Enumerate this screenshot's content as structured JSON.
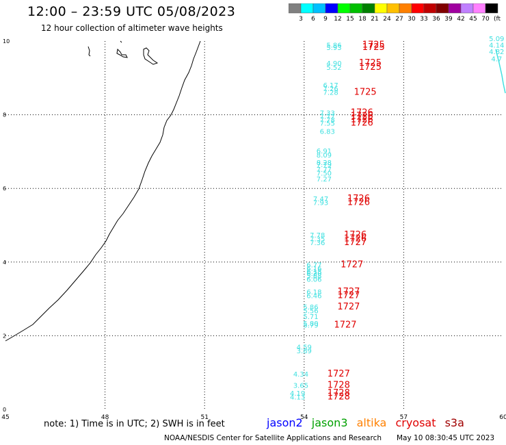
{
  "title": "12:00 – 23:59 UTC 05/08/2023",
  "subtitle": "12 hour collection of altimeter wave heights",
  "colorbar": {
    "colors": [
      "#808080",
      "#00ffff",
      "#00c0ff",
      "#0000ff",
      "#00ff00",
      "#00c000",
      "#008000",
      "#ffff00",
      "#ffc000",
      "#ff8000",
      "#ff0000",
      "#c00000",
      "#800000",
      "#a000a0",
      "#c080ff",
      "#ff80ff",
      "#000000"
    ],
    "labels": [
      "3",
      "6",
      "9",
      "12",
      "15",
      "18",
      "21",
      "24",
      "27",
      "30",
      "33",
      "36",
      "39",
      "42",
      "45",
      "70"
    ],
    "unit": "(ft)"
  },
  "chart_data": {
    "type": "scatter",
    "title": "12:00 – 23:59 UTC 05/08/2023",
    "subtitle": "12 hour collection of altimeter wave heights",
    "xlim": [
      45,
      60
    ],
    "ylim": [
      0,
      10
    ],
    "x_ticks": [
      "45",
      "48",
      "51",
      "54",
      "57",
      "60"
    ],
    "y_ticks": [
      "0",
      "2",
      "4",
      "6",
      "8",
      "10"
    ],
    "grid": true,
    "wave_points": [
      {
        "x": 54.9,
        "y": 9.82,
        "label": "5.86",
        "color": "#40e0e0"
      },
      {
        "x": 54.9,
        "y": 9.76,
        "label": "5.93",
        "color": "#40e0e0"
      },
      {
        "x": 54.9,
        "y": 9.33,
        "label": "4.90",
        "color": "#40e0e0"
      },
      {
        "x": 54.9,
        "y": 9.22,
        "label": "5.52",
        "color": "#40e0e0"
      },
      {
        "x": 54.8,
        "y": 8.74,
        "label": "6.17",
        "color": "#40e0e0"
      },
      {
        "x": 54.8,
        "y": 8.64,
        "label": "7.26",
        "color": "#40e0e0"
      },
      {
        "x": 54.8,
        "y": 8.54,
        "label": "7.28",
        "color": "#40e0e0"
      },
      {
        "x": 54.7,
        "y": 7.98,
        "label": "7.33",
        "color": "#40e0e0"
      },
      {
        "x": 54.7,
        "y": 7.89,
        "label": "7.77",
        "color": "#40e0e0"
      },
      {
        "x": 54.7,
        "y": 7.8,
        "label": "7.78",
        "color": "#40e0e0"
      },
      {
        "x": 54.7,
        "y": 7.7,
        "label": "7.55",
        "color": "#40e0e0"
      },
      {
        "x": 54.7,
        "y": 7.48,
        "label": "6.83",
        "color": "#40e0e0"
      },
      {
        "x": 54.6,
        "y": 6.95,
        "label": "6.91",
        "color": "#40e0e0"
      },
      {
        "x": 54.6,
        "y": 6.84,
        "label": "8.09",
        "color": "#40e0e0"
      },
      {
        "x": 54.6,
        "y": 6.64,
        "label": "8.28",
        "color": "#40e0e0"
      },
      {
        "x": 54.6,
        "y": 6.58,
        "label": "7.79",
        "color": "#40e0e0"
      },
      {
        "x": 54.6,
        "y": 6.45,
        "label": "7.77",
        "color": "#40e0e0"
      },
      {
        "x": 54.6,
        "y": 6.35,
        "label": "7.50",
        "color": "#40e0e0"
      },
      {
        "x": 54.6,
        "y": 6.19,
        "label": "7.27",
        "color": "#40e0e0"
      },
      {
        "x": 54.5,
        "y": 5.65,
        "label": "7.47",
        "color": "#40e0e0"
      },
      {
        "x": 54.5,
        "y": 5.55,
        "label": "7.93",
        "color": "#40e0e0"
      },
      {
        "x": 54.4,
        "y": 4.67,
        "label": "7.78",
        "color": "#40e0e0"
      },
      {
        "x": 54.4,
        "y": 4.56,
        "label": "7.35",
        "color": "#40e0e0"
      },
      {
        "x": 54.4,
        "y": 4.46,
        "label": "7.36",
        "color": "#40e0e0"
      },
      {
        "x": 54.3,
        "y": 3.86,
        "label": "6.77",
        "color": "#40e0e0"
      },
      {
        "x": 54.3,
        "y": 3.76,
        "label": "6.16",
        "color": "#40e0e0"
      },
      {
        "x": 54.3,
        "y": 3.68,
        "label": "6.18",
        "color": "#40e0e0"
      },
      {
        "x": 54.3,
        "y": 3.62,
        "label": "6.20",
        "color": "#40e0e0"
      },
      {
        "x": 54.3,
        "y": 3.56,
        "label": "5.88",
        "color": "#40e0e0"
      },
      {
        "x": 54.3,
        "y": 3.47,
        "label": "6.06",
        "color": "#40e0e0"
      },
      {
        "x": 54.3,
        "y": 3.12,
        "label": "6.18",
        "color": "#40e0e0"
      },
      {
        "x": 54.3,
        "y": 3.02,
        "label": "6.46",
        "color": "#40e0e0"
      },
      {
        "x": 54.2,
        "y": 2.71,
        "label": "5.86",
        "color": "#40e0e0"
      },
      {
        "x": 54.2,
        "y": 2.61,
        "label": "5.56",
        "color": "#40e0e0"
      },
      {
        "x": 54.2,
        "y": 2.45,
        "label": "5.71",
        "color": "#40e0e0"
      },
      {
        "x": 54.2,
        "y": 2.27,
        "label": "5.80",
        "color": "#40e0e0"
      },
      {
        "x": 54.2,
        "y": 2.22,
        "label": "5.79",
        "color": "#40e0e0"
      },
      {
        "x": 54.0,
        "y": 1.63,
        "label": "4.59",
        "color": "#40e0e0"
      },
      {
        "x": 54.0,
        "y": 1.52,
        "label": "3.89",
        "color": "#40e0e0"
      },
      {
        "x": 53.9,
        "y": 0.89,
        "label": "4.34",
        "color": "#40e0e0"
      },
      {
        "x": 53.9,
        "y": 0.59,
        "label": "3.65",
        "color": "#40e0e0"
      },
      {
        "x": 53.8,
        "y": 0.37,
        "label": "4.19",
        "color": "#40e0e0"
      },
      {
        "x": 53.8,
        "y": 0.27,
        "label": "4.13",
        "color": "#40e0e0"
      },
      {
        "x": 59.8,
        "y": 10.0,
        "label": "5.09",
        "color": "#40e0e0"
      },
      {
        "x": 59.8,
        "y": 9.82,
        "label": "4.14",
        "color": "#40e0e0"
      },
      {
        "x": 59.8,
        "y": 9.65,
        "label": "4.82",
        "color": "#40e0e0"
      },
      {
        "x": 59.8,
        "y": 9.45,
        "label": "4.7",
        "color": "#40e0e0"
      }
    ],
    "time_labels": [
      {
        "x": 55.75,
        "y": 9.82,
        "label": "1725"
      },
      {
        "x": 55.75,
        "y": 9.76,
        "label": "1725"
      },
      {
        "x": 55.65,
        "y": 9.33,
        "label": "1725"
      },
      {
        "x": 55.65,
        "y": 9.22,
        "label": "1725"
      },
      {
        "x": 55.5,
        "y": 8.54,
        "label": "1725"
      },
      {
        "x": 55.4,
        "y": 7.98,
        "label": "1726"
      },
      {
        "x": 55.4,
        "y": 7.89,
        "label": "1726"
      },
      {
        "x": 55.4,
        "y": 7.8,
        "label": "1726"
      },
      {
        "x": 55.4,
        "y": 7.7,
        "label": "1726"
      },
      {
        "x": 55.3,
        "y": 5.65,
        "label": "1726"
      },
      {
        "x": 55.3,
        "y": 5.55,
        "label": "1726"
      },
      {
        "x": 55.2,
        "y": 4.67,
        "label": "1726"
      },
      {
        "x": 55.2,
        "y": 4.56,
        "label": "1726"
      },
      {
        "x": 55.2,
        "y": 4.46,
        "label": "1727"
      },
      {
        "x": 55.1,
        "y": 3.86,
        "label": "1727"
      },
      {
        "x": 55.0,
        "y": 3.12,
        "label": "1727"
      },
      {
        "x": 55.0,
        "y": 3.02,
        "label": "1727"
      },
      {
        "x": 55.0,
        "y": 2.71,
        "label": "1727"
      },
      {
        "x": 54.9,
        "y": 2.22,
        "label": "1727"
      },
      {
        "x": 54.7,
        "y": 0.89,
        "label": "1727"
      },
      {
        "x": 54.7,
        "y": 0.59,
        "label": "1728"
      },
      {
        "x": 54.7,
        "y": 0.37,
        "label": "1728"
      },
      {
        "x": 54.7,
        "y": 0.27,
        "label": "1728"
      }
    ]
  },
  "note": "note:  1) Time is in UTC;  2) SWH is in feet",
  "satellites": [
    {
      "name": "jason2",
      "color": "#0000ff"
    },
    {
      "name": "jason3",
      "color": "#00a000"
    },
    {
      "name": "altika",
      "color": "#ff8000"
    },
    {
      "name": "cryosat",
      "color": "#e00000"
    },
    {
      "name": "s3a",
      "color": "#a00000"
    }
  ],
  "credit": "NOAA/NESDIS Center for Satellite Applications and Research",
  "timestamp": "May 10 08:30:45 UTC 2023"
}
